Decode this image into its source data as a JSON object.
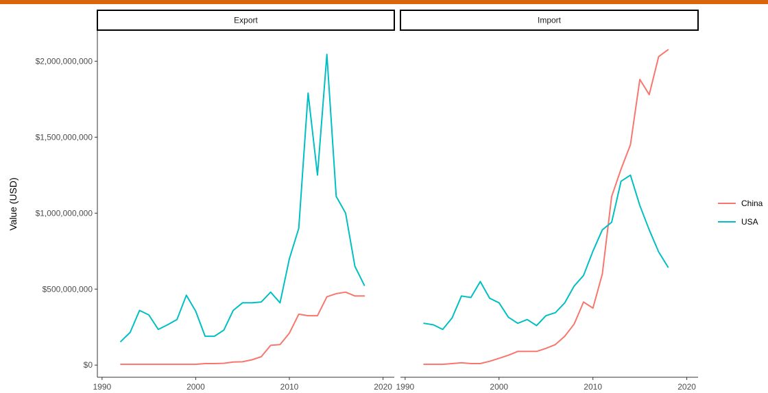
{
  "chart_data": {
    "type": "line",
    "ylabel": "Value (USD)",
    "xlabel": "",
    "xlim": [
      1989.5,
      2021.2
    ],
    "ylim": [
      -80000000,
      2200000000
    ],
    "x_ticks": [
      1990,
      2000,
      2010,
      2020
    ],
    "x_tick_labels": [
      "1990",
      "2000",
      "2010",
      "2020"
    ],
    "y_ticks": [
      0,
      500000000,
      1000000000,
      1500000000,
      2000000000
    ],
    "y_tick_labels": [
      "$0",
      "$500,000,000",
      "$1,000,000,000",
      "$1,500,000,000",
      "$2,000,000,000"
    ],
    "grid": false,
    "legend_position": "right",
    "legend": [
      {
        "name": "China",
        "color": "#F8766D"
      },
      {
        "name": "USA",
        "color": "#00BFC4"
      }
    ],
    "panels": [
      {
        "label": "Export",
        "series": [
          {
            "name": "China",
            "color": "#F8766D",
            "x": [
              1992,
              1993,
              1994,
              1995,
              1996,
              1997,
              1998,
              1999,
              2000,
              2001,
              2002,
              2003,
              2004,
              2005,
              2006,
              2007,
              2008,
              2009,
              2010,
              2011,
              2012,
              2013,
              2014,
              2015,
              2016,
              2017,
              2018
            ],
            "values": [
              5000000,
              5000000,
              5000000,
              5000000,
              5000000,
              5000000,
              5000000,
              5000000,
              5000000,
              10000000,
              10000000,
              12000000,
              20000000,
              22000000,
              35000000,
              55000000,
              130000000,
              135000000,
              210000000,
              335000000,
              325000000,
              325000000,
              450000000,
              470000000,
              480000000,
              455000000,
              455000000
            ]
          },
          {
            "name": "USA",
            "color": "#00BFC4",
            "x": [
              1992,
              1993,
              1994,
              1995,
              1996,
              1997,
              1998,
              1999,
              2000,
              2001,
              2002,
              2003,
              2004,
              2005,
              2006,
              2007,
              2008,
              2009,
              2010,
              2011,
              2012,
              2013,
              2014,
              2015,
              2016,
              2017,
              2018
            ],
            "values": [
              155000000,
              215000000,
              360000000,
              330000000,
              235000000,
              265000000,
              300000000,
              460000000,
              355000000,
              190000000,
              190000000,
              230000000,
              360000000,
              410000000,
              410000000,
              415000000,
              480000000,
              410000000,
              700000000,
              900000000,
              1790000000,
              1250000000,
              2045000000,
              1110000000,
              1000000000,
              650000000,
              525000000
            ]
          }
        ]
      },
      {
        "label": "Import",
        "series": [
          {
            "name": "China",
            "color": "#F8766D",
            "x": [
              1992,
              1993,
              1994,
              1995,
              1996,
              1997,
              1998,
              1999,
              2000,
              2001,
              2002,
              2003,
              2004,
              2005,
              2006,
              2007,
              2008,
              2009,
              2010,
              2011,
              2012,
              2013,
              2014,
              2015,
              2016,
              2017,
              2018
            ],
            "values": [
              5000000,
              5000000,
              5000000,
              10000000,
              15000000,
              10000000,
              10000000,
              25000000,
              45000000,
              65000000,
              90000000,
              90000000,
              90000000,
              110000000,
              135000000,
              190000000,
              270000000,
              415000000,
              375000000,
              600000000,
              1110000000,
              1290000000,
              1450000000,
              1880000000,
              1780000000,
              2030000000,
              2075000000
            ]
          },
          {
            "name": "USA",
            "color": "#00BFC4",
            "x": [
              1992,
              1993,
              1994,
              1995,
              1996,
              1997,
              1998,
              1999,
              2000,
              2001,
              2002,
              2003,
              2004,
              2005,
              2006,
              2007,
              2008,
              2009,
              2010,
              2011,
              2012,
              2013,
              2014,
              2015,
              2016,
              2017,
              2018
            ],
            "values": [
              275000000,
              265000000,
              235000000,
              310000000,
              455000000,
              445000000,
              550000000,
              440000000,
              410000000,
              315000000,
              275000000,
              300000000,
              260000000,
              325000000,
              345000000,
              410000000,
              520000000,
              590000000,
              750000000,
              890000000,
              940000000,
              1210000000,
              1250000000,
              1050000000,
              890000000,
              745000000,
              645000000
            ]
          }
        ]
      }
    ]
  }
}
